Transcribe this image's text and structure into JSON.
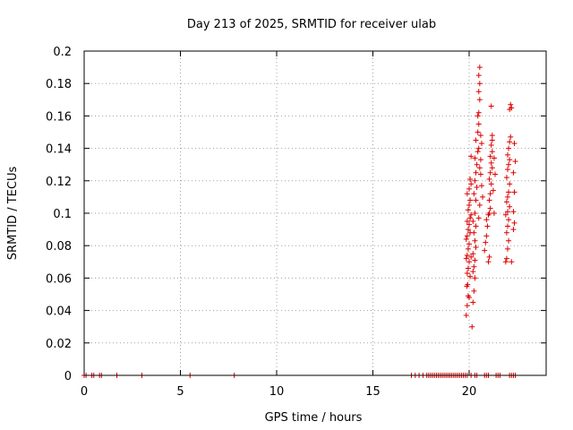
{
  "chart_data": {
    "type": "scatter",
    "title": "Day 213 of 2025, SRMTID for receiver ulab",
    "xlabel": "GPS time / hours",
    "ylabel": "SRMTID / TECUs",
    "xlim": [
      0,
      24
    ],
    "ylim": [
      0,
      0.2
    ],
    "grid": true,
    "marker": "+",
    "colors": {
      "marker": "#dd0000",
      "grid": "#a0a0a0",
      "axis": "#000000"
    },
    "xticks": [
      {
        "value": 0,
        "label": "0"
      },
      {
        "value": 5,
        "label": "5"
      },
      {
        "value": 10,
        "label": "10"
      },
      {
        "value": 15,
        "label": "15"
      },
      {
        "value": 20,
        "label": "20"
      }
    ],
    "yticks": [
      {
        "value": 0,
        "label": "0"
      },
      {
        "value": 0.02,
        "label": "0.02"
      },
      {
        "value": 0.04,
        "label": "0.04"
      },
      {
        "value": 0.06,
        "label": "0.06"
      },
      {
        "value": 0.08,
        "label": "0.08"
      },
      {
        "value": 0.1,
        "label": "0.1"
      },
      {
        "value": 0.12,
        "label": "0.12"
      },
      {
        "value": 0.14,
        "label": "0.14"
      },
      {
        "value": 0.16,
        "label": "0.16"
      },
      {
        "value": 0.18,
        "label": "0.18"
      },
      {
        "value": 0.2,
        "label": "0.2"
      }
    ],
    "series": [
      {
        "name": "SRMTID",
        "points": [
          [
            0.0,
            0
          ],
          [
            0.1,
            0
          ],
          [
            0.4,
            0
          ],
          [
            0.5,
            0
          ],
          [
            0.8,
            0
          ],
          [
            0.9,
            0
          ],
          [
            1.7,
            0
          ],
          [
            3.0,
            0
          ],
          [
            5.5,
            0
          ],
          [
            7.8,
            0
          ],
          [
            17.0,
            0
          ],
          [
            17.2,
            0
          ],
          [
            17.4,
            0
          ],
          [
            17.6,
            0
          ],
          [
            17.8,
            0
          ],
          [
            17.9,
            0
          ],
          [
            18.0,
            0
          ],
          [
            18.1,
            0
          ],
          [
            18.2,
            0
          ],
          [
            18.3,
            0
          ],
          [
            18.4,
            0
          ],
          [
            18.5,
            0
          ],
          [
            18.6,
            0
          ],
          [
            18.7,
            0
          ],
          [
            18.8,
            0
          ],
          [
            18.9,
            0
          ],
          [
            19.0,
            0
          ],
          [
            19.1,
            0
          ],
          [
            19.2,
            0
          ],
          [
            19.3,
            0
          ],
          [
            19.4,
            0
          ],
          [
            19.5,
            0
          ],
          [
            19.6,
            0
          ],
          [
            19.7,
            0
          ],
          [
            19.8,
            0
          ],
          [
            19.9,
            0
          ],
          [
            20.1,
            0
          ],
          [
            20.3,
            0
          ],
          [
            20.4,
            0
          ],
          [
            20.8,
            0
          ],
          [
            20.9,
            0
          ],
          [
            21.0,
            0
          ],
          [
            21.4,
            0
          ],
          [
            21.5,
            0
          ],
          [
            21.6,
            0
          ],
          [
            22.1,
            0
          ],
          [
            22.2,
            0
          ],
          [
            22.3,
            0
          ],
          [
            22.4,
            0
          ],
          [
            19.85,
            0.037
          ],
          [
            19.9,
            0.043
          ],
          [
            19.95,
            0.049
          ],
          [
            19.88,
            0.055
          ],
          [
            19.92,
            0.056
          ],
          [
            20.0,
            0.048
          ],
          [
            20.05,
            0.061
          ],
          [
            19.9,
            0.063
          ],
          [
            19.95,
            0.066
          ],
          [
            20.0,
            0.07
          ],
          [
            19.85,
            0.072
          ],
          [
            19.9,
            0.074
          ],
          [
            20.1,
            0.073
          ],
          [
            19.95,
            0.078
          ],
          [
            20.0,
            0.081
          ],
          [
            19.85,
            0.084
          ],
          [
            19.9,
            0.086
          ],
          [
            20.05,
            0.088
          ],
          [
            19.95,
            0.09
          ],
          [
            20.0,
            0.093
          ],
          [
            19.9,
            0.095
          ],
          [
            20.05,
            0.097
          ],
          [
            20.1,
            0.099
          ],
          [
            19.95,
            0.102
          ],
          [
            20.0,
            0.105
          ],
          [
            20.05,
            0.108
          ],
          [
            19.9,
            0.112
          ],
          [
            20.0,
            0.115
          ],
          [
            20.1,
            0.118
          ],
          [
            20.05,
            0.121
          ],
          [
            20.1,
            0.135
          ],
          [
            20.15,
            0.03
          ],
          [
            20.2,
            0.045
          ],
          [
            20.25,
            0.052
          ],
          [
            20.3,
            0.06
          ],
          [
            20.2,
            0.064
          ],
          [
            20.25,
            0.067
          ],
          [
            20.3,
            0.071
          ],
          [
            20.2,
            0.075
          ],
          [
            20.35,
            0.079
          ],
          [
            20.3,
            0.083
          ],
          [
            20.25,
            0.088
          ],
          [
            20.35,
            0.092
          ],
          [
            20.2,
            0.095
          ],
          [
            20.3,
            0.1
          ],
          [
            20.35,
            0.108
          ],
          [
            20.25,
            0.112
          ],
          [
            20.4,
            0.116
          ],
          [
            20.3,
            0.12
          ],
          [
            20.35,
            0.125
          ],
          [
            20.4,
            0.13
          ],
          [
            20.3,
            0.134
          ],
          [
            20.45,
            0.138
          ],
          [
            20.35,
            0.145
          ],
          [
            20.5,
            0.14
          ],
          [
            20.45,
            0.15
          ],
          [
            20.5,
            0.155
          ],
          [
            20.45,
            0.16
          ],
          [
            20.5,
            0.162
          ],
          [
            20.55,
            0.17
          ],
          [
            20.5,
            0.175
          ],
          [
            20.55,
            0.18
          ],
          [
            20.5,
            0.185
          ],
          [
            20.55,
            0.19
          ],
          [
            20.6,
            0.148
          ],
          [
            20.65,
            0.143
          ],
          [
            20.6,
            0.133
          ],
          [
            20.55,
            0.128
          ],
          [
            20.6,
            0.124
          ],
          [
            20.65,
            0.117
          ],
          [
            20.5,
            0.097
          ],
          [
            20.55,
            0.105
          ],
          [
            20.7,
            0.11
          ],
          [
            20.8,
            0.077
          ],
          [
            20.85,
            0.082
          ],
          [
            20.9,
            0.086
          ],
          [
            20.95,
            0.092
          ],
          [
            20.9,
            0.096
          ],
          [
            21.0,
            0.099
          ],
          [
            21.05,
            0.1
          ],
          [
            21.1,
            0.103
          ],
          [
            21.05,
            0.108
          ],
          [
            21.1,
            0.112
          ],
          [
            21.15,
            0.118
          ],
          [
            21.05,
            0.121
          ],
          [
            21.1,
            0.125
          ],
          [
            21.2,
            0.128
          ],
          [
            21.15,
            0.131
          ],
          [
            21.1,
            0.135
          ],
          [
            21.2,
            0.138
          ],
          [
            21.15,
            0.142
          ],
          [
            21.2,
            0.145
          ],
          [
            21.15,
            0.166
          ],
          [
            21.2,
            0.148
          ],
          [
            21.0,
            0.07
          ],
          [
            21.05,
            0.073
          ],
          [
            21.3,
            0.1
          ],
          [
            21.25,
            0.114
          ],
          [
            21.35,
            0.124
          ],
          [
            21.3,
            0.134
          ],
          [
            21.9,
            0.07
          ],
          [
            21.95,
            0.072
          ],
          [
            22.0,
            0.078
          ],
          [
            22.05,
            0.083
          ],
          [
            21.95,
            0.088
          ],
          [
            22.0,
            0.092
          ],
          [
            22.05,
            0.096
          ],
          [
            21.9,
            0.099
          ],
          [
            22.0,
            0.101
          ],
          [
            22.1,
            0.104
          ],
          [
            21.95,
            0.107
          ],
          [
            22.0,
            0.11
          ],
          [
            22.05,
            0.113
          ],
          [
            22.1,
            0.118
          ],
          [
            21.95,
            0.122
          ],
          [
            22.0,
            0.127
          ],
          [
            22.05,
            0.13
          ],
          [
            22.1,
            0.133
          ],
          [
            22.0,
            0.136
          ],
          [
            22.05,
            0.14
          ],
          [
            22.1,
            0.144
          ],
          [
            22.15,
            0.147
          ],
          [
            22.1,
            0.164
          ],
          [
            22.15,
            0.167
          ],
          [
            22.2,
            0.165
          ],
          [
            22.3,
            0.09
          ],
          [
            22.35,
            0.094
          ],
          [
            22.3,
            0.101
          ],
          [
            22.35,
            0.113
          ],
          [
            22.3,
            0.125
          ],
          [
            22.4,
            0.132
          ],
          [
            22.35,
            0.143
          ],
          [
            22.2,
            0.07
          ]
        ]
      }
    ]
  }
}
